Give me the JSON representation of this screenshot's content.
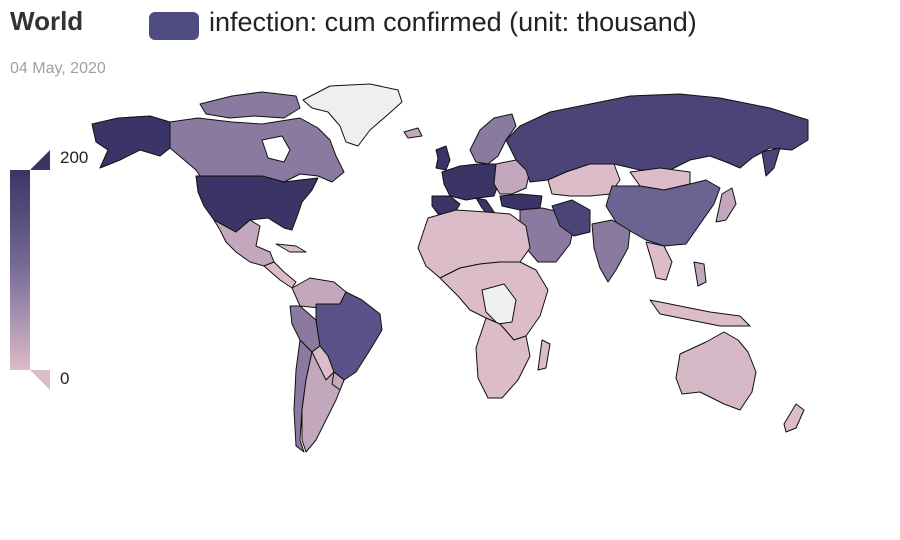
{
  "title": "World",
  "legend": {
    "label": "infection: cum confirmed (unit: thousand)",
    "color": "#4f4c7f"
  },
  "date": "04 May, 2020",
  "scale": {
    "max_label": "200",
    "min_label": "0",
    "min_value": 0,
    "max_value": 200,
    "color_high": "#3a3467",
    "color_mid": "#7a6d98",
    "color_low": "#dbbcc8"
  },
  "colors": {
    "no_data": "#efefef",
    "border": "#111111"
  },
  "regions": [
    {
      "name": "United States",
      "level": "highest"
    },
    {
      "name": "Russia",
      "level": "high"
    },
    {
      "name": "Brazil",
      "level": "high"
    },
    {
      "name": "Canada",
      "level": "medium"
    },
    {
      "name": "China",
      "level": "medium"
    },
    {
      "name": "Australia",
      "level": "low"
    },
    {
      "name": "Greenland",
      "level": "no data"
    }
  ]
}
